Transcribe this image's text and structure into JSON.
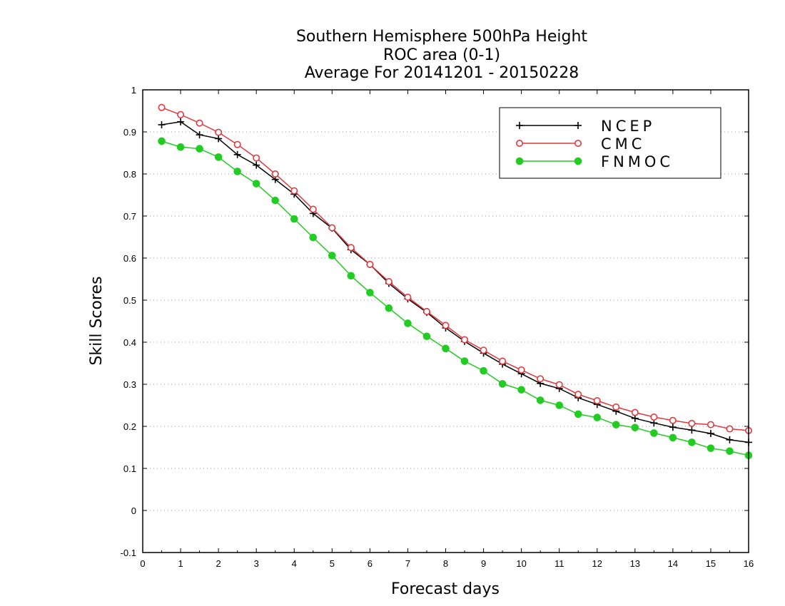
{
  "chart_data": {
    "type": "line",
    "title": [
      "Southern Hemisphere 500hPa Height",
      "ROC area (0-1)",
      "Average For 20141201 - 20150228"
    ],
    "xlabel": "Forecast days",
    "ylabel": "Skill Scores",
    "xlim": [
      0,
      16
    ],
    "ylim": [
      -0.1,
      1
    ],
    "xticks": [
      "0",
      "1",
      "2",
      "3",
      "4",
      "5",
      "6",
      "7",
      "8",
      "9",
      "10",
      "11",
      "12",
      "13",
      "14",
      "15",
      "16"
    ],
    "yticks": [
      "-0.1",
      "0",
      "0.1",
      "0.2",
      "0.3",
      "0.4",
      "0.5",
      "0.6",
      "0.7",
      "0.8",
      "0.9",
      "1"
    ],
    "grid": "horizontal dotted",
    "legend_position": "top-right",
    "x": [
      0.5,
      1,
      1.5,
      2,
      2.5,
      3,
      3.5,
      4,
      4.5,
      5,
      5.5,
      6,
      6.5,
      7,
      7.5,
      8,
      8.5,
      9,
      9.5,
      10,
      10.5,
      11,
      11.5,
      12,
      12.5,
      13,
      13.5,
      14,
      14.5,
      15,
      15.5,
      16
    ],
    "series": [
      {
        "name": "NCEP",
        "color": "#000000",
        "marker": "plus",
        "values": [
          0.917,
          0.924,
          0.893,
          0.884,
          0.846,
          0.821,
          0.787,
          0.752,
          0.706,
          0.671,
          0.62,
          0.585,
          0.54,
          0.503,
          0.471,
          0.434,
          0.402,
          0.374,
          0.348,
          0.325,
          0.302,
          0.29,
          0.268,
          0.252,
          0.236,
          0.219,
          0.208,
          0.198,
          0.191,
          0.183,
          0.168,
          0.162
        ]
      },
      {
        "name": "CMC",
        "color": "#e0393e",
        "marker": "open-circle",
        "values": [
          0.958,
          0.941,
          0.921,
          0.899,
          0.87,
          0.838,
          0.8,
          0.76,
          0.716,
          0.672,
          0.625,
          0.585,
          0.544,
          0.507,
          0.473,
          0.44,
          0.406,
          0.381,
          0.355,
          0.334,
          0.313,
          0.299,
          0.276,
          0.261,
          0.246,
          0.233,
          0.222,
          0.214,
          0.207,
          0.204,
          0.194,
          0.19
        ]
      },
      {
        "name": "FNMOC",
        "color": "#22cc22",
        "marker": "filled-circle",
        "values": [
          0.878,
          0.864,
          0.86,
          0.84,
          0.806,
          0.777,
          0.737,
          0.693,
          0.649,
          0.606,
          0.558,
          0.518,
          0.481,
          0.445,
          0.414,
          0.385,
          0.355,
          0.332,
          0.301,
          0.287,
          0.262,
          0.25,
          0.229,
          0.221,
          0.204,
          0.197,
          0.184,
          0.173,
          0.162,
          0.148,
          0.141,
          0.131
        ]
      }
    ]
  }
}
